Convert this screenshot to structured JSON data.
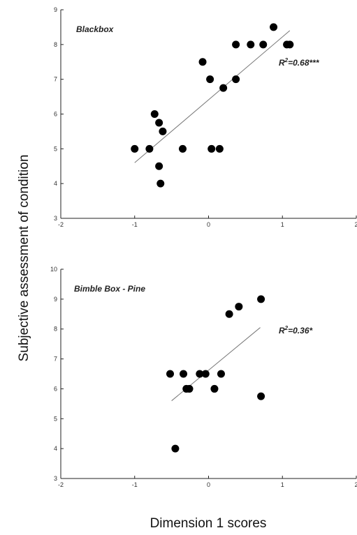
{
  "figure": {
    "ylabel": "Subjective assessment of condition",
    "xlabel": "Dimension 1 scores"
  },
  "chart_data": [
    {
      "type": "scatter",
      "title": "Blackbox",
      "annotation": {
        "text": "R",
        "sup": "2",
        "rest": "=0.68***"
      },
      "xlim": [
        -2,
        2
      ],
      "ylim": [
        3,
        9
      ],
      "xticks": [
        "-2",
        "-1",
        "0",
        "1",
        "2"
      ],
      "yticks": [
        "3",
        "4",
        "5",
        "6",
        "7",
        "8",
        "9"
      ],
      "points": [
        [
          -1.0,
          5.0
        ],
        [
          -0.8,
          5.0
        ],
        [
          -0.73,
          6.0
        ],
        [
          -0.67,
          5.75
        ],
        [
          -0.62,
          5.5
        ],
        [
          -0.67,
          4.5
        ],
        [
          -0.65,
          4.0
        ],
        [
          -0.35,
          5.0
        ],
        [
          -0.08,
          7.5
        ],
        [
          0.02,
          7.0
        ],
        [
          0.04,
          5.0
        ],
        [
          0.15,
          5.0
        ],
        [
          0.2,
          6.75
        ],
        [
          0.37,
          8.0
        ],
        [
          0.37,
          7.0
        ],
        [
          0.57,
          8.0
        ],
        [
          0.74,
          8.0
        ],
        [
          0.88,
          8.5
        ],
        [
          1.06,
          8.0
        ],
        [
          1.1,
          8.0
        ]
      ],
      "fit": {
        "x": [
          -1.0,
          1.1
        ],
        "y": [
          4.6,
          8.4
        ]
      },
      "grid": false
    },
    {
      "type": "scatter",
      "title": "Bimble Box - Pine",
      "annotation": {
        "text": "R",
        "sup": "2",
        "rest": "=0.36*"
      },
      "xlim": [
        -2,
        2
      ],
      "ylim": [
        3,
        10
      ],
      "xticks": [
        "-2",
        "-1",
        "0",
        "1",
        "2"
      ],
      "yticks": [
        "3",
        "4",
        "5",
        "6",
        "7",
        "8",
        "9",
        "10"
      ],
      "points": [
        [
          -0.52,
          6.5
        ],
        [
          -0.34,
          6.5
        ],
        [
          -0.3,
          6.0
        ],
        [
          -0.26,
          6.0
        ],
        [
          -0.12,
          6.5
        ],
        [
          -0.04,
          6.5
        ],
        [
          0.08,
          6.0
        ],
        [
          0.17,
          6.5
        ],
        [
          0.28,
          8.5
        ],
        [
          0.41,
          8.75
        ],
        [
          0.71,
          9.0
        ],
        [
          0.71,
          5.75
        ],
        [
          -0.45,
          4.0
        ]
      ],
      "fit": {
        "x": [
          -0.5,
          0.7
        ],
        "y": [
          5.6,
          8.05
        ]
      },
      "grid": false
    }
  ]
}
